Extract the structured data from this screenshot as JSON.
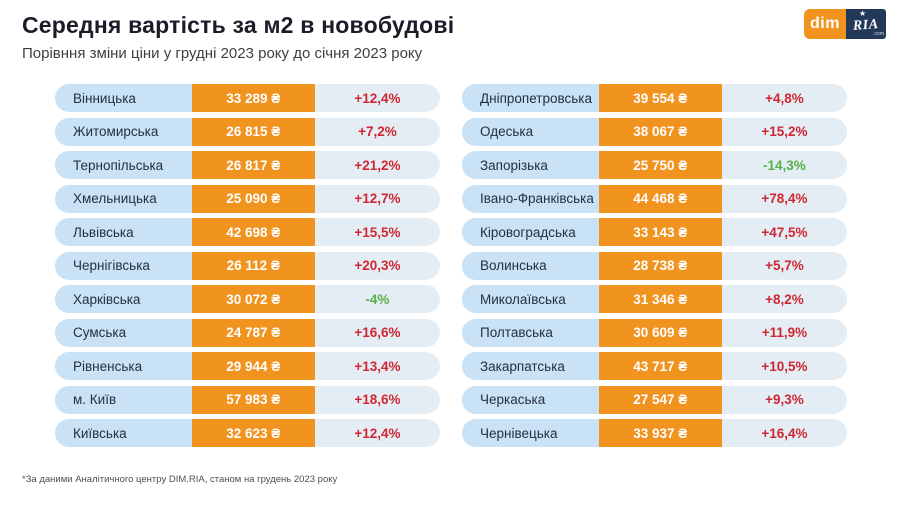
{
  "header": {
    "title": "Середня вартість за м2 в новобудові",
    "subtitle": "Порівння зміни ціни у грудні 2023 року до січня 2023 року"
  },
  "logo": {
    "dim": "dim",
    "ria": "RIA",
    "com": ".com"
  },
  "footnote": "*За даними Аналітичного центру DIM.RIA, станом на грудень 2023 року",
  "colors": {
    "accent_orange": "#f0931f",
    "name_cell_blue": "#c9e2f5",
    "pct_cell_gray": "#e4edf4",
    "increase_red": "#cf2733",
    "decrease_green": "#58b14b",
    "logo_navy": "#24395a"
  },
  "chart_data": {
    "type": "table",
    "title": "Середня вартість за м2 в новобудові",
    "subtitle": "Порівння зміни ціни у грудні 2023 року до січня 2023 року",
    "unit": "₴",
    "left_column": [
      {
        "region": "Вінницька",
        "price_uah": 33289,
        "price_label": "33 289 ₴",
        "change_pct": 12.4,
        "change_label": "+12,4%",
        "direction": "up"
      },
      {
        "region": "Житомирська",
        "price_uah": 26815,
        "price_label": "26 815 ₴",
        "change_pct": 7.2,
        "change_label": "+7,2%",
        "direction": "up"
      },
      {
        "region": "Тернопільська",
        "price_uah": 26817,
        "price_label": "26 817 ₴",
        "change_pct": 21.2,
        "change_label": "+21,2%",
        "direction": "up"
      },
      {
        "region": "Хмельницька",
        "price_uah": 25090,
        "price_label": "25 090 ₴",
        "change_pct": 12.7,
        "change_label": "+12,7%",
        "direction": "up"
      },
      {
        "region": "Львівська",
        "price_uah": 42698,
        "price_label": "42 698 ₴",
        "change_pct": 15.5,
        "change_label": "+15,5%",
        "direction": "up"
      },
      {
        "region": "Чернігівська",
        "price_uah": 26112,
        "price_label": "26 112 ₴",
        "change_pct": 20.3,
        "change_label": "+20,3%",
        "direction": "up"
      },
      {
        "region": "Харківська",
        "price_uah": 30072,
        "price_label": "30 072 ₴",
        "change_pct": -4,
        "change_label": "-4%",
        "direction": "down"
      },
      {
        "region": "Сумська",
        "price_uah": 24787,
        "price_label": "24 787 ₴",
        "change_pct": 16.6,
        "change_label": "+16,6%",
        "direction": "up"
      },
      {
        "region": "Рівненська",
        "price_uah": 29944,
        "price_label": "29 944 ₴",
        "change_pct": 13.4,
        "change_label": "+13,4%",
        "direction": "up"
      },
      {
        "region": "м. Київ",
        "price_uah": 57983,
        "price_label": "57 983 ₴",
        "change_pct": 18.6,
        "change_label": "+18,6%",
        "direction": "up"
      },
      {
        "region": "Київська",
        "price_uah": 32623,
        "price_label": "32 623 ₴",
        "change_pct": 12.4,
        "change_label": "+12,4%",
        "direction": "up"
      }
    ],
    "right_column": [
      {
        "region": "Дніпропетровська",
        "price_uah": 39554,
        "price_label": "39 554 ₴",
        "change_pct": 4.8,
        "change_label": "+4,8%",
        "direction": "up"
      },
      {
        "region": "Одеська",
        "price_uah": 38067,
        "price_label": "38 067 ₴",
        "change_pct": 15.2,
        "change_label": "+15,2%",
        "direction": "up"
      },
      {
        "region": "Запорізька",
        "price_uah": 25750,
        "price_label": "25 750 ₴",
        "change_pct": -14.3,
        "change_label": "-14,3%",
        "direction": "down"
      },
      {
        "region": "Івано-Франківська",
        "price_uah": 44468,
        "price_label": "44 468 ₴",
        "change_pct": 78.4,
        "change_label": "+78,4%",
        "direction": "up"
      },
      {
        "region": "Кіровоградська",
        "price_uah": 33143,
        "price_label": "33 143 ₴",
        "change_pct": 47.5,
        "change_label": "+47,5%",
        "direction": "up"
      },
      {
        "region": "Волинська",
        "price_uah": 28738,
        "price_label": "28 738 ₴",
        "change_pct": 5.7,
        "change_label": "+5,7%",
        "direction": "up"
      },
      {
        "region": "Миколаївська",
        "price_uah": 31346,
        "price_label": "31 346 ₴",
        "change_pct": 8.2,
        "change_label": "+8,2%",
        "direction": "up"
      },
      {
        "region": "Полтавська",
        "price_uah": 30609,
        "price_label": "30 609 ₴",
        "change_pct": 11.9,
        "change_label": "+11,9%",
        "direction": "up"
      },
      {
        "region": "Закарпатська",
        "price_uah": 43717,
        "price_label": "43 717 ₴",
        "change_pct": 10.5,
        "change_label": "+10,5%",
        "direction": "up"
      },
      {
        "region": "Черкаська",
        "price_uah": 27547,
        "price_label": "27 547 ₴",
        "change_pct": 9.3,
        "change_label": "+9,3%",
        "direction": "up"
      },
      {
        "region": "Чернівецька",
        "price_uah": 33937,
        "price_label": "33 937 ₴",
        "change_pct": 16.4,
        "change_label": "+16,4%",
        "direction": "up"
      }
    ]
  }
}
